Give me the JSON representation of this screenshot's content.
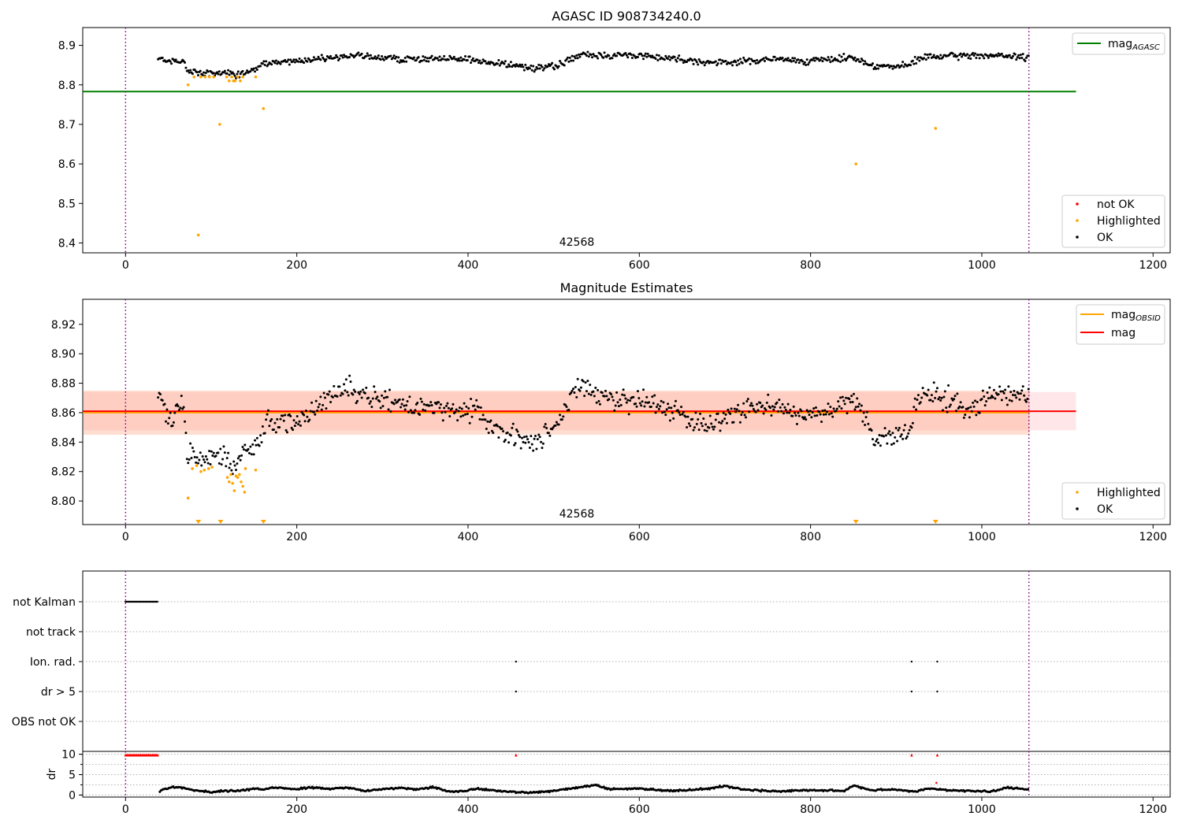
{
  "colors": {
    "ok": "#000000",
    "highlighted": "#ffa500",
    "not_ok": "#ff0000",
    "mag_agasc": "#008000",
    "mag_obsid": "#ffa500",
    "mag": "#ff0000",
    "obs_boundary": "#800080",
    "band_mag": "#ffb6c1",
    "band_obsid": "#ffa07a"
  },
  "chart_data": [
    {
      "type": "scatter",
      "name": "agasc-panel",
      "title": "AGASC ID 908734240.0",
      "xlim": [
        -50,
        1220
      ],
      "ylim": [
        8.375,
        8.945
      ],
      "xticks": [
        0,
        200,
        400,
        600,
        800,
        1000,
        1200
      ],
      "yticks": [
        8.4,
        8.5,
        8.6,
        8.7,
        8.8,
        8.9
      ],
      "grid": false,
      "obs_boundaries": [
        0,
        1055
      ],
      "obsid_label": "42568",
      "mag_agasc": 8.783,
      "mag_agasc_xrange": [
        -50,
        1110
      ],
      "highlighted_points": [
        [
          73,
          8.8
        ],
        [
          80,
          8.82
        ],
        [
          85,
          8.42
        ],
        [
          88,
          8.82
        ],
        [
          93,
          8.82
        ],
        [
          98,
          8.82
        ],
        [
          103,
          8.82
        ],
        [
          110,
          8.7
        ],
        [
          118,
          8.82
        ],
        [
          121,
          8.81
        ],
        [
          124,
          8.82
        ],
        [
          126,
          8.81
        ],
        [
          128,
          8.81
        ],
        [
          131,
          8.82
        ],
        [
          134,
          8.81
        ],
        [
          137,
          8.82
        ],
        [
          152,
          8.82
        ],
        [
          161,
          8.74
        ],
        [
          853,
          8.6
        ],
        [
          946,
          8.69
        ]
      ],
      "ok_trend": [
        [
          38,
          8.87
        ],
        [
          48,
          8.86
        ],
        [
          60,
          8.86
        ],
        [
          68,
          8.86
        ],
        [
          72,
          8.835
        ],
        [
          85,
          8.83
        ],
        [
          100,
          8.83
        ],
        [
          120,
          8.83
        ],
        [
          130,
          8.825
        ],
        [
          145,
          8.835
        ],
        [
          155,
          8.84
        ],
        [
          165,
          8.855
        ],
        [
          200,
          8.86
        ],
        [
          245,
          8.87
        ],
        [
          265,
          8.875
        ],
        [
          320,
          8.865
        ],
        [
          400,
          8.865
        ],
        [
          430,
          8.855
        ],
        [
          470,
          8.845
        ],
        [
          500,
          8.845
        ],
        [
          530,
          8.875
        ],
        [
          600,
          8.875
        ],
        [
          650,
          8.865
        ],
        [
          690,
          8.855
        ],
        [
          760,
          8.865
        ],
        [
          800,
          8.86
        ],
        [
          850,
          8.87
        ],
        [
          870,
          8.85
        ],
        [
          900,
          8.845
        ],
        [
          915,
          8.85
        ],
        [
          930,
          8.87
        ],
        [
          1000,
          8.875
        ],
        [
          1055,
          8.87
        ]
      ],
      "legends": [
        {
          "position": "upper-right",
          "entries": [
            {
              "label": "mag",
              "subscript": "AGASC",
              "kind": "line",
              "color": "#008000"
            }
          ]
        },
        {
          "position": "lower-right",
          "entries": [
            {
              "label": "not OK",
              "kind": "marker",
              "color": "#ff0000"
            },
            {
              "label": "Highlighted",
              "kind": "marker",
              "color": "#ffa500"
            },
            {
              "label": "OK",
              "kind": "marker",
              "color": "#000000"
            }
          ]
        }
      ]
    },
    {
      "type": "scatter",
      "name": "estimates-panel",
      "title": "Magnitude Estimates",
      "xlim": [
        -50,
        1220
      ],
      "ylim": [
        8.784,
        8.937
      ],
      "xticks": [
        0,
        200,
        400,
        600,
        800,
        1000,
        1200
      ],
      "yticks": [
        8.8,
        8.82,
        8.84,
        8.86,
        8.88,
        8.9,
        8.92
      ],
      "ytick_labels": [
        "8.80",
        "8.82",
        "8.84",
        "8.86",
        "8.88",
        "8.90",
        "8.92"
      ],
      "grid": false,
      "obs_boundaries": [
        0,
        1055
      ],
      "obsid_label": "42568",
      "mag": 8.861,
      "mag_obsid": 8.86,
      "band_mag": [
        8.848,
        8.874
      ],
      "band_obsid": [
        8.845,
        8.875
      ],
      "bands_xrange": [
        -50,
        1110
      ],
      "highlighted_points": [
        [
          73,
          8.802
        ],
        [
          78,
          8.822
        ],
        [
          83,
          8.824
        ],
        [
          88,
          8.82
        ],
        [
          92,
          8.821
        ],
        [
          97,
          8.822
        ],
        [
          101,
          8.823
        ],
        [
          119,
          8.816
        ],
        [
          121,
          8.813
        ],
        [
          123,
          8.818
        ],
        [
          125,
          8.812
        ],
        [
          127,
          8.807
        ],
        [
          129,
          8.817
        ],
        [
          131,
          8.816
        ],
        [
          133,
          8.818
        ],
        [
          135,
          8.813
        ],
        [
          137,
          8.81
        ],
        [
          139,
          8.806
        ],
        [
          140,
          8.822
        ],
        [
          152,
          8.821
        ]
      ],
      "off_scale_x": [
        85,
        111,
        161,
        853,
        946
      ],
      "ok_trend": [
        [
          38,
          8.876
        ],
        [
          48,
          8.862
        ],
        [
          55,
          8.85
        ],
        [
          60,
          8.866
        ],
        [
          68,
          8.864
        ],
        [
          72,
          8.834
        ],
        [
          85,
          8.828
        ],
        [
          100,
          8.83
        ],
        [
          115,
          8.83
        ],
        [
          125,
          8.82
        ],
        [
          135,
          8.832
        ],
        [
          145,
          8.835
        ],
        [
          155,
          8.84
        ],
        [
          165,
          8.852
        ],
        [
          200,
          8.855
        ],
        [
          230,
          8.865
        ],
        [
          255,
          8.878
        ],
        [
          275,
          8.872
        ],
        [
          320,
          8.866
        ],
        [
          380,
          8.862
        ],
        [
          410,
          8.86
        ],
        [
          430,
          8.848
        ],
        [
          460,
          8.845
        ],
        [
          480,
          8.84
        ],
        [
          500,
          8.85
        ],
        [
          530,
          8.878
        ],
        [
          560,
          8.87
        ],
        [
          600,
          8.868
        ],
        [
          640,
          8.86
        ],
        [
          680,
          8.852
        ],
        [
          720,
          8.862
        ],
        [
          760,
          8.866
        ],
        [
          790,
          8.858
        ],
        [
          820,
          8.86
        ],
        [
          845,
          8.868
        ],
        [
          860,
          8.86
        ],
        [
          875,
          8.842
        ],
        [
          900,
          8.845
        ],
        [
          915,
          8.848
        ],
        [
          925,
          8.87
        ],
        [
          940,
          8.872
        ],
        [
          990,
          8.862
        ],
        [
          1010,
          8.872
        ],
        [
          1055,
          8.872
        ]
      ],
      "legends": [
        {
          "position": "upper-right",
          "entries": [
            {
              "label": "mag",
              "subscript": "OBSID",
              "kind": "line",
              "color": "#ffa500"
            },
            {
              "label": "mag",
              "kind": "line",
              "color": "#ff0000"
            }
          ]
        },
        {
          "position": "lower-right",
          "entries": [
            {
              "label": "Highlighted",
              "kind": "marker",
              "color": "#ffa500"
            },
            {
              "label": "OK",
              "kind": "marker",
              "color": "#000000"
            }
          ]
        }
      ]
    },
    {
      "type": "scatter",
      "name": "flags-panel",
      "xlim": [
        -50,
        1220
      ],
      "categories": [
        "not Kalman",
        "not track",
        "Ion. rad.",
        "dr > 5",
        "OBS not OK"
      ],
      "grid": "dotted-horizontal",
      "obs_boundaries": [
        0,
        1055
      ],
      "flags": [
        {
          "category": "not Kalman",
          "x_range": [
            0,
            38
          ]
        },
        {
          "category": "not track",
          "x": []
        },
        {
          "category": "Ion. rad.",
          "x": [
            456,
            918,
            948
          ]
        },
        {
          "category": "dr > 5",
          "x": [
            456,
            918,
            948
          ]
        },
        {
          "category": "OBS not OK",
          "x": []
        }
      ]
    },
    {
      "type": "scatter",
      "name": "dr-panel",
      "ylabel": "dr",
      "xlim": [
        -50,
        1220
      ],
      "ylim": [
        -0.5,
        10.7
      ],
      "xticks": [
        0,
        200,
        400,
        600,
        800,
        1000,
        1200
      ],
      "yticks": [
        0,
        5,
        10
      ],
      "grid": "dotted-horizontal",
      "obs_boundaries": [
        0,
        1055
      ],
      "capped_points_x_range": [
        0,
        38
      ],
      "capped_points_x": [
        456,
        918,
        948
      ],
      "capped_value": 9.8,
      "not_ok_points": [
        [
          947,
          3.0
        ]
      ],
      "ok_trend": [
        [
          40,
          1.0
        ],
        [
          50,
          1.8
        ],
        [
          60,
          2.0
        ],
        [
          70,
          1.6
        ],
        [
          80,
          1.2
        ],
        [
          90,
          1.0
        ],
        [
          100,
          0.6
        ],
        [
          110,
          1.0
        ],
        [
          130,
          1.0
        ],
        [
          140,
          1.2
        ],
        [
          150,
          1.6
        ],
        [
          160,
          1.4
        ],
        [
          175,
          1.8
        ],
        [
          200,
          1.4
        ],
        [
          215,
          1.9
        ],
        [
          240,
          1.5
        ],
        [
          260,
          1.8
        ],
        [
          280,
          1.0
        ],
        [
          320,
          1.8
        ],
        [
          340,
          1.4
        ],
        [
          360,
          1.9
        ],
        [
          380,
          0.8
        ],
        [
          395,
          1.0
        ],
        [
          410,
          1.6
        ],
        [
          440,
          0.9
        ],
        [
          470,
          0.6
        ],
        [
          500,
          1.0
        ],
        [
          520,
          1.6
        ],
        [
          550,
          2.5
        ],
        [
          565,
          1.4
        ],
        [
          600,
          1.6
        ],
        [
          640,
          1.0
        ],
        [
          680,
          1.6
        ],
        [
          700,
          2.2
        ],
        [
          720,
          1.4
        ],
        [
          760,
          0.9
        ],
        [
          800,
          1.2
        ],
        [
          840,
          1.0
        ],
        [
          850,
          2.4
        ],
        [
          870,
          1.2
        ],
        [
          900,
          1.4
        ],
        [
          920,
          0.8
        ],
        [
          940,
          1.6
        ],
        [
          960,
          1.2
        ],
        [
          990,
          1.0
        ],
        [
          1010,
          0.8
        ],
        [
          1030,
          1.8
        ],
        [
          1055,
          1.4
        ]
      ]
    }
  ]
}
